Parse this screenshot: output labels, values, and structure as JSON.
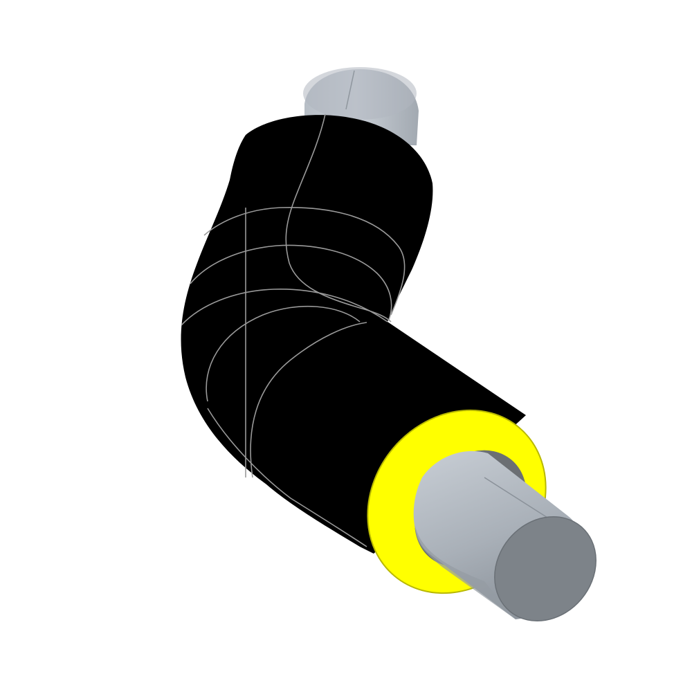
{
  "scene": {
    "subject": "pre-insulated-pipe-elbow",
    "colors": {
      "background": "#ffffff",
      "jacket": "#000000",
      "seam_lines": "#9a9a9a",
      "insulation": "#ffff00",
      "insulation_edge": "#c8c800",
      "steel_light": "#bcc3cb",
      "steel_mid": "#9aa2ab",
      "steel_end_face": "#7d8389",
      "steel_shadow": "#6f767d"
    }
  }
}
